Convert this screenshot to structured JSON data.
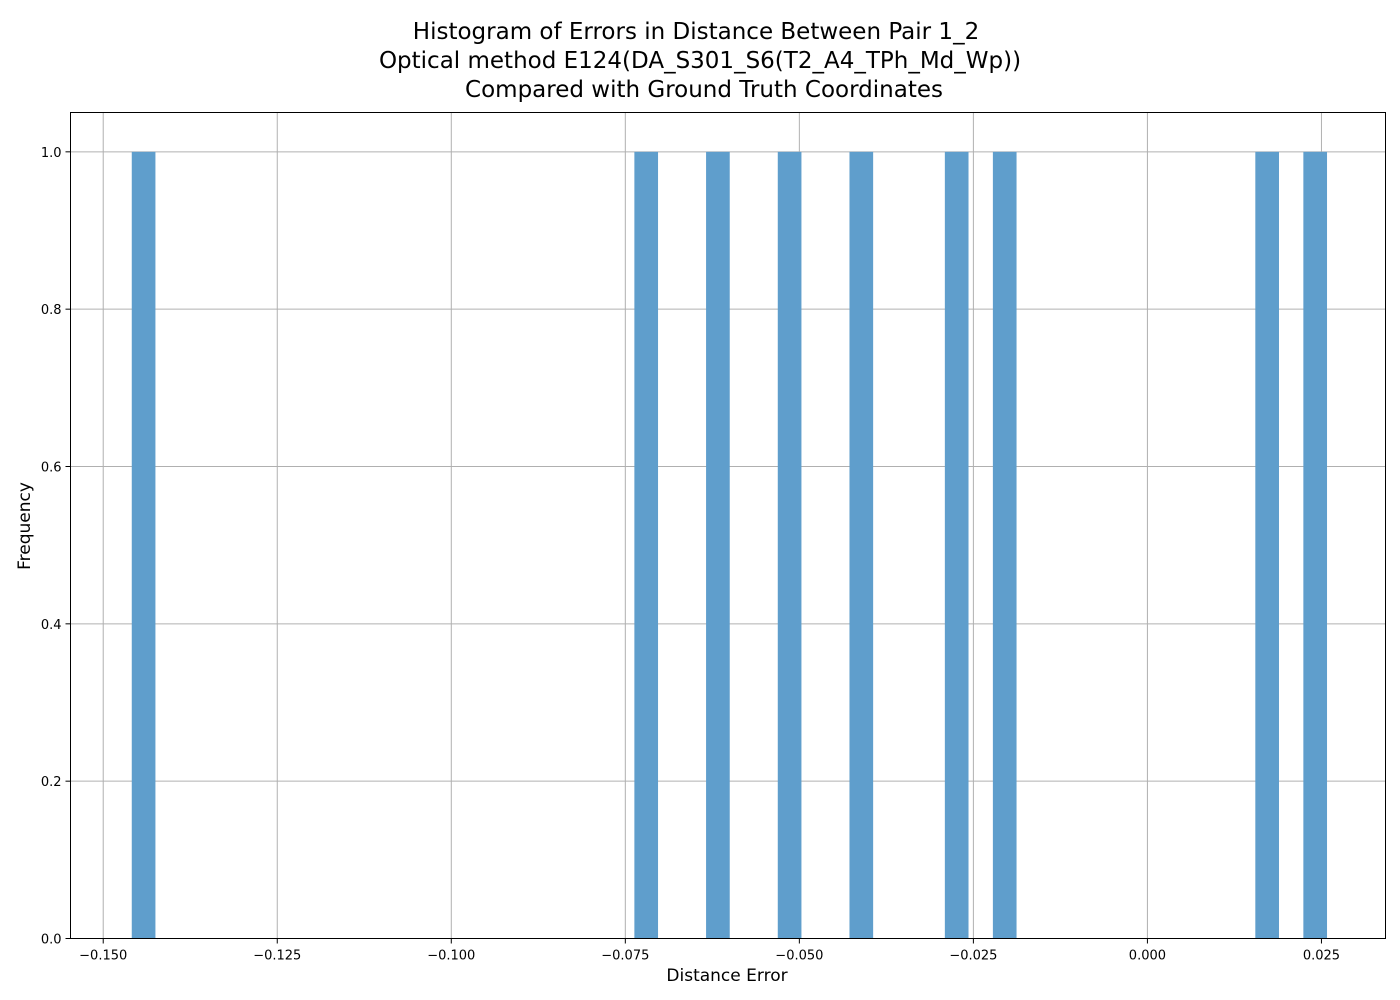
{
  "chart_data": {
    "type": "bar",
    "title_lines": [
      "Histogram of Errors in Distance Between Pair 1_2",
      "Optical method E124(DA_S301_S6(T2_A4_TPh_Md_Wp))",
      "Compared with Ground Truth Coordinates"
    ],
    "xlabel": "Distance Error",
    "ylabel": "Frequency",
    "xlim": [
      -0.1547,
      0.0342
    ],
    "ylim": [
      0.0,
      1.05
    ],
    "xticks": [
      -0.15,
      -0.125,
      -0.1,
      -0.075,
      -0.05,
      -0.025,
      0.0,
      0.025
    ],
    "xtick_labels": [
      "−0.150",
      "−0.125",
      "−0.100",
      "−0.075",
      "−0.050",
      "−0.025",
      "0.000",
      "0.025"
    ],
    "yticks": [
      0.0,
      0.2,
      0.4,
      0.6,
      0.8,
      1.0
    ],
    "ytick_labels": [
      "0.0",
      "0.2",
      "0.4",
      "0.6",
      "0.8",
      "1.0"
    ],
    "grid": true,
    "bar_color": "#5f9ecc",
    "bins": [
      {
        "x0": -0.1459,
        "x1": -0.1425,
        "count": 1
      },
      {
        "x0": -0.0737,
        "x1": -0.0703,
        "count": 1
      },
      {
        "x0": -0.0634,
        "x1": -0.06,
        "count": 1
      },
      {
        "x0": -0.0531,
        "x1": -0.0497,
        "count": 1
      },
      {
        "x0": -0.0428,
        "x1": -0.0394,
        "count": 1
      },
      {
        "x0": -0.0291,
        "x1": -0.0257,
        "count": 1
      },
      {
        "x0": -0.0222,
        "x1": -0.0188,
        "count": 1
      },
      {
        "x0": 0.0155,
        "x1": 0.0189,
        "count": 1
      },
      {
        "x0": 0.0224,
        "x1": 0.0258,
        "count": 1
      }
    ]
  }
}
